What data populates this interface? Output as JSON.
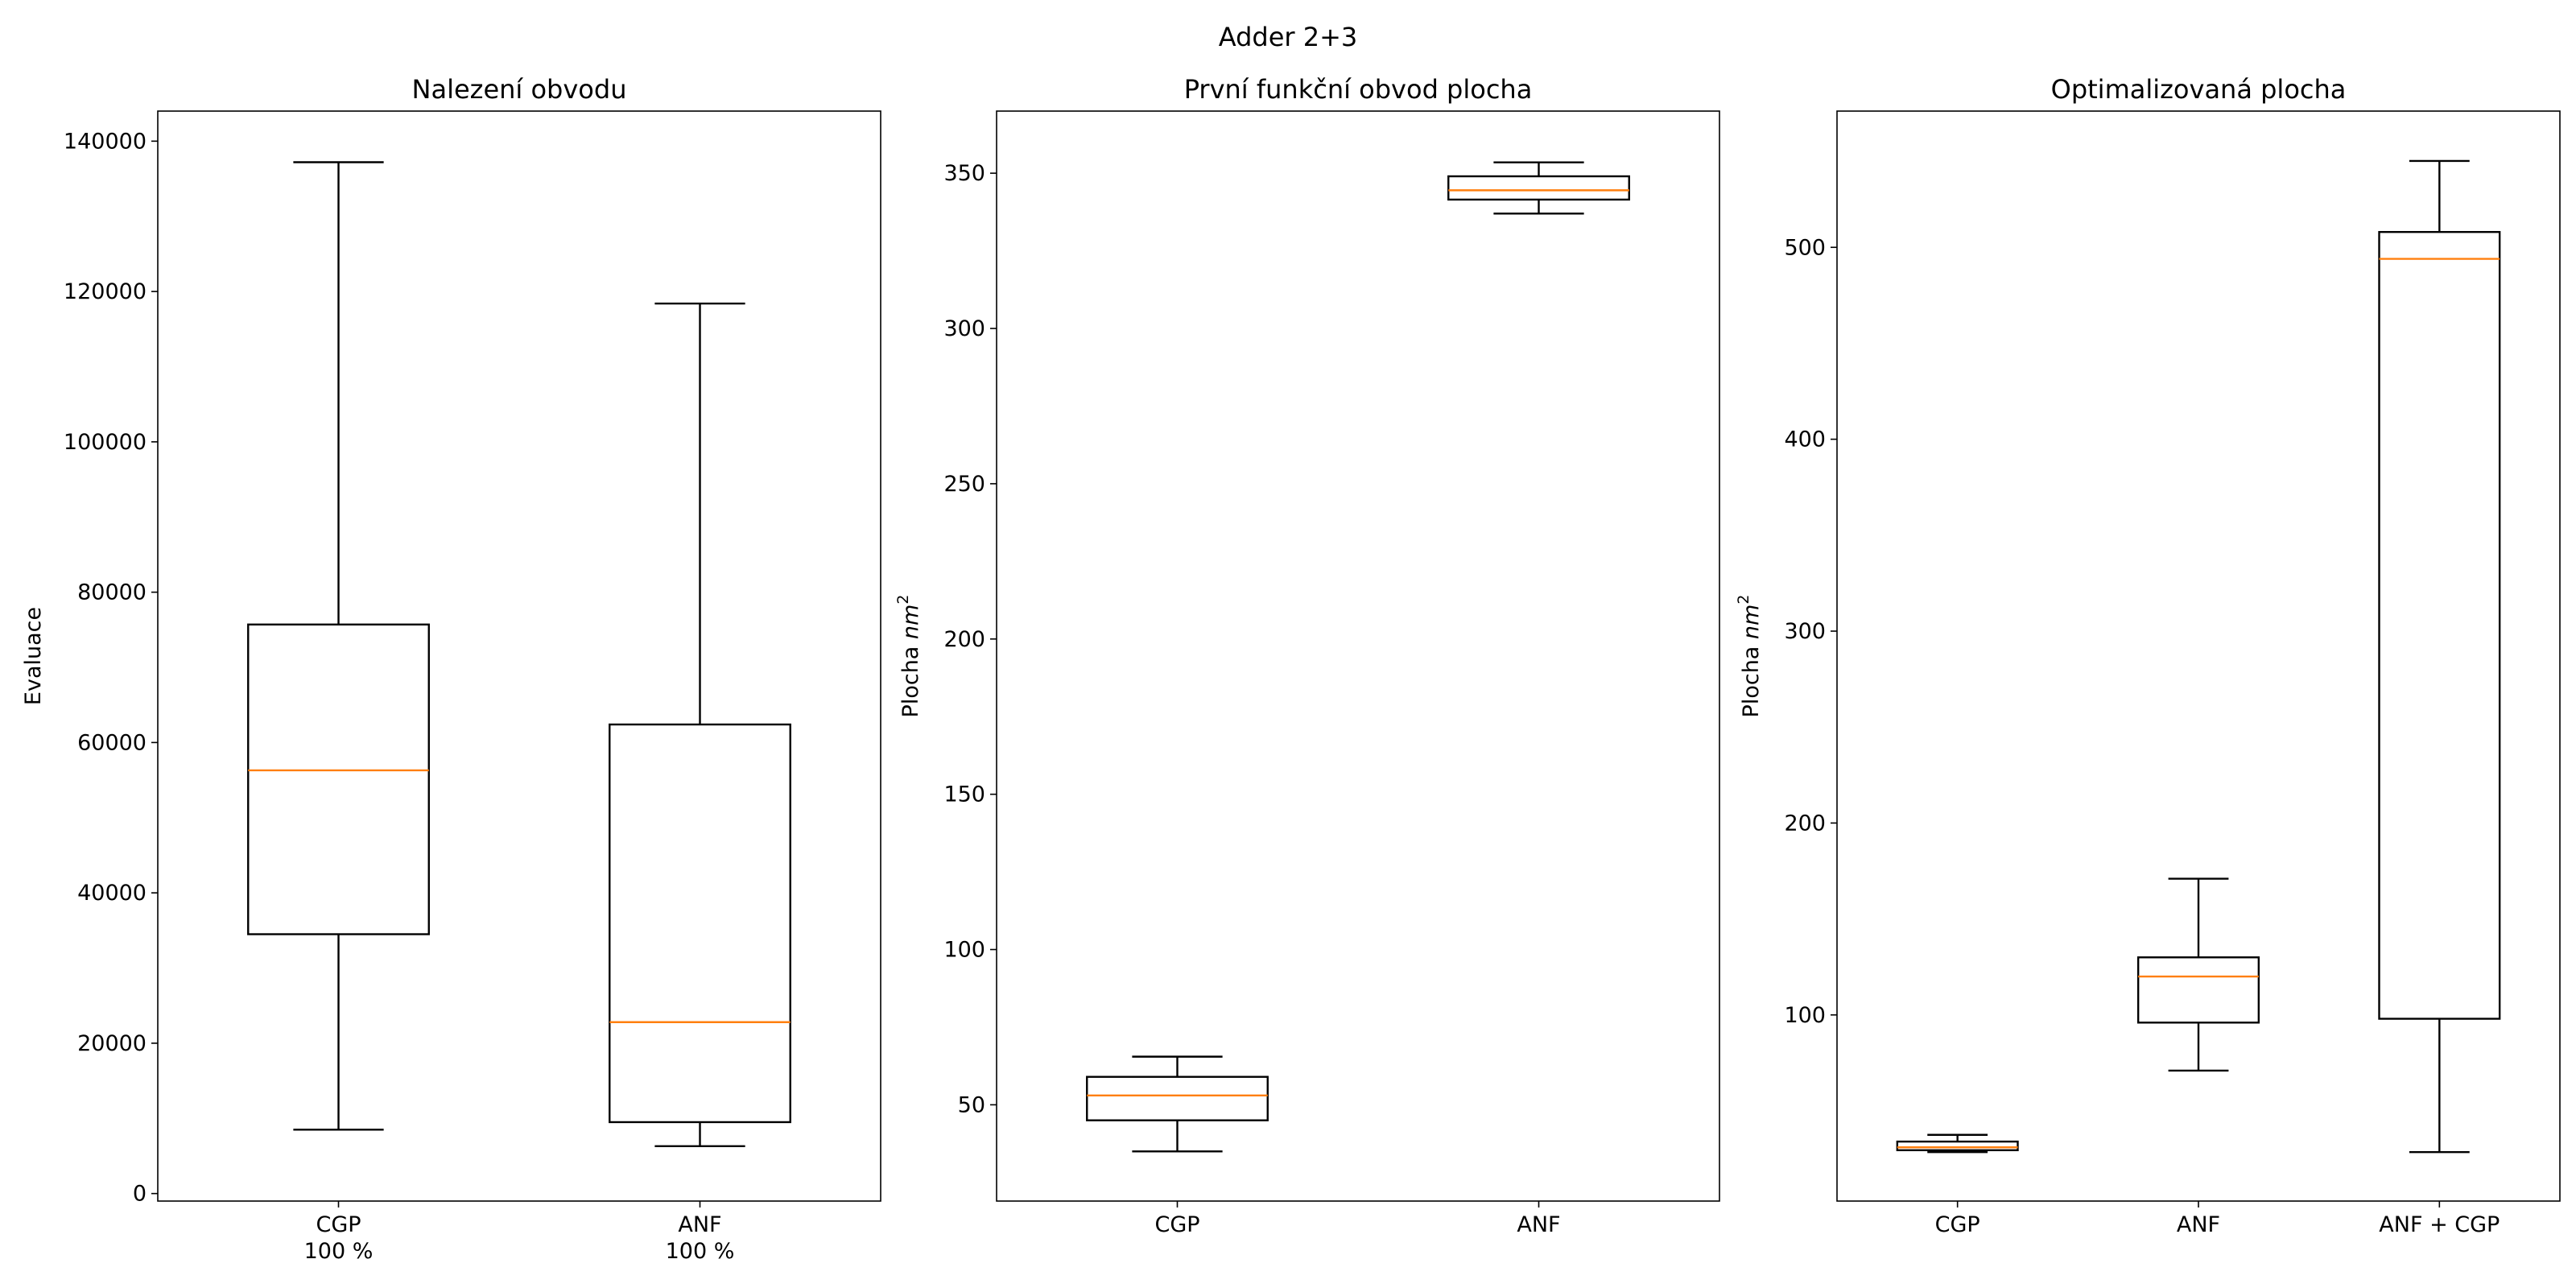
{
  "figure": {
    "suptitle": "Adder 2+3"
  },
  "chart_data": [
    {
      "type": "box",
      "title": "Nalezení obvodu",
      "ylabel": "Evaluace",
      "ylim": [
        -1000,
        144000
      ],
      "yticks": [
        0,
        20000,
        40000,
        60000,
        80000,
        100000,
        120000,
        140000
      ],
      "categories": [
        [
          "CGP",
          "100 %"
        ],
        [
          "ANF",
          "100 %"
        ]
      ],
      "boxes": [
        {
          "whisker_low": 8500,
          "q1": 34500,
          "median": 56300,
          "q3": 75700,
          "whisker_high": 137200
        },
        {
          "whisker_low": 6300,
          "q1": 9500,
          "median": 22800,
          "q3": 62400,
          "whisker_high": 118400
        }
      ]
    },
    {
      "type": "box",
      "title": "První funkční obvod plocha",
      "ylabel_text": "Plocha ",
      "ylabel_unit": "nm",
      "ylabel_exp": "2",
      "ylim": [
        19,
        370
      ],
      "yticks": [
        50,
        100,
        150,
        200,
        250,
        300,
        350
      ],
      "categories": [
        [
          "CGP"
        ],
        [
          "ANF"
        ]
      ],
      "boxes": [
        {
          "whisker_low": 35,
          "q1": 45,
          "median": 53,
          "q3": 59,
          "whisker_high": 65.5
        },
        {
          "whisker_low": 337,
          "q1": 341.5,
          "median": 344.5,
          "q3": 349,
          "whisker_high": 353.5
        }
      ]
    },
    {
      "type": "box",
      "title": "Optimalizovaná plocha",
      "ylabel_text": "Plocha ",
      "ylabel_unit": "nm",
      "ylabel_exp": "2",
      "ylim": [
        3,
        571
      ],
      "yticks": [
        100,
        200,
        300,
        400,
        500
      ],
      "categories": [
        [
          "CGP"
        ],
        [
          "ANF"
        ],
        [
          "ANF + CGP"
        ]
      ],
      "boxes": [
        {
          "whisker_low": 28.5,
          "q1": 29.5,
          "median": 31,
          "q3": 34,
          "whisker_high": 37.5
        },
        {
          "whisker_low": 71,
          "q1": 96,
          "median": 120,
          "q3": 130,
          "whisker_high": 171
        },
        {
          "whisker_low": 28.5,
          "q1": 98,
          "median": 494,
          "q3": 508,
          "whisker_high": 545
        }
      ]
    }
  ],
  "colors": {
    "box": "#000000",
    "median": "#ff7f0e",
    "background": "#ffffff"
  }
}
